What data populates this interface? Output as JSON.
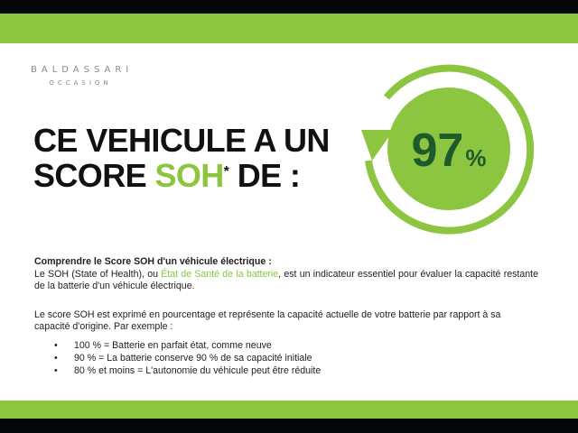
{
  "colors": {
    "accent": "#8cc540",
    "dark_green": "#1e5a2a",
    "text": "#111111"
  },
  "logo": {
    "line1": "BALDASSARI",
    "line2": "OCCASION"
  },
  "title": {
    "line1": "CE VEHICULE A UN",
    "line2_prefix": "SCORE ",
    "line2_highlight": "SOH",
    "asterisk": "*",
    "line2_suffix": " DE :"
  },
  "score": {
    "value": "97",
    "unit": "%",
    "icon": "circular-arrow-icon"
  },
  "body": {
    "heading": "Comprendre le Score SOH d'un véhicule électrique :",
    "p1_before": "Le SOH (State of Health), ou ",
    "p1_highlight": "État de Santé de la batterie",
    "p1_after": ", est un indicateur essentiel pour évaluer la capacité restante de la batterie d'un véhicule électrique.",
    "p2": "Le score SOH est exprimé en pourcentage et représente la capacité actuelle de votre batterie par rapport à sa capacité d'origine. Par exemple :",
    "items": [
      "100 % = Batterie en parfait état, comme neuve",
      "90 % = La batterie conserve 90 % de sa capacité initiale",
      "80 % et moins = L'autonomie du véhicule peut être réduite"
    ]
  }
}
